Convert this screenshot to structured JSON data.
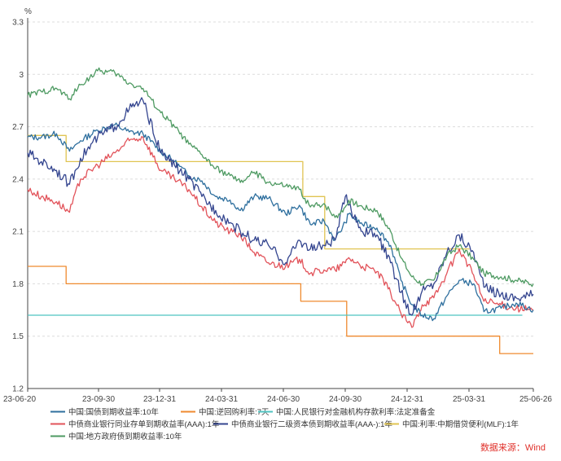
{
  "chart_data": {
    "type": "line",
    "unit": "%",
    "source": "数据来源：Wind",
    "ylim": [
      1.2,
      3.3
    ],
    "y_ticks": [
      "1.2",
      "1.5",
      "1.8",
      "2.1",
      "2.4",
      "2.7",
      "3",
      "3.3"
    ],
    "x_ticks": [
      "23-06-20",
      "23-09-30",
      "23-12-31",
      "24-03-31",
      "24-06-30",
      "24-09-30",
      "24-12-31",
      "25-03-31",
      "25-06-26"
    ],
    "xlim": [
      "2023-06-20",
      "2025-06-26"
    ],
    "grid": true,
    "legend_position": "bottom",
    "series": [
      {
        "name": "中国:国债到期收益率:10年",
        "color": "#2e6f9e",
        "points": [
          [
            "2023-06-20",
            2.64
          ],
          [
            "2023-07-10",
            2.64
          ],
          [
            "2023-08-01",
            2.66
          ],
          [
            "2023-08-20",
            2.56
          ],
          [
            "2023-09-05",
            2.62
          ],
          [
            "2023-09-30",
            2.68
          ],
          [
            "2023-10-25",
            2.71
          ],
          [
            "2023-11-15",
            2.67
          ],
          [
            "2023-12-05",
            2.66
          ],
          [
            "2023-12-31",
            2.56
          ],
          [
            "2024-01-20",
            2.5
          ],
          [
            "2024-02-10",
            2.42
          ],
          [
            "2024-02-29",
            2.39
          ],
          [
            "2024-03-20",
            2.3
          ],
          [
            "2024-04-10",
            2.28
          ],
          [
            "2024-04-25",
            2.22
          ],
          [
            "2024-05-15",
            2.3
          ],
          [
            "2024-06-05",
            2.29
          ],
          [
            "2024-06-30",
            2.2
          ],
          [
            "2024-07-20",
            2.25
          ],
          [
            "2024-08-05",
            2.14
          ],
          [
            "2024-08-25",
            2.16
          ],
          [
            "2024-09-10",
            2.05
          ],
          [
            "2024-09-25",
            2.15
          ],
          [
            "2024-09-30",
            2.2
          ],
          [
            "2024-10-20",
            2.14
          ],
          [
            "2024-11-10",
            2.12
          ],
          [
            "2024-11-30",
            2.02
          ],
          [
            "2024-12-15",
            1.82
          ],
          [
            "2024-12-31",
            1.68
          ],
          [
            "2025-01-15",
            1.62
          ],
          [
            "2025-02-01",
            1.6
          ],
          [
            "2025-02-20",
            1.73
          ],
          [
            "2025-03-10",
            1.82
          ],
          [
            "2025-03-31",
            1.8
          ],
          [
            "2025-04-15",
            1.64
          ],
          [
            "2025-05-10",
            1.66
          ],
          [
            "2025-06-01",
            1.69
          ],
          [
            "2025-06-26",
            1.65
          ]
        ]
      },
      {
        "name": "中国:逆回购利率:7天",
        "color": "#ef8a2f",
        "points": [
          [
            "2023-06-20",
            1.9
          ],
          [
            "2023-08-15",
            1.9
          ],
          [
            "2023-08-15",
            1.8
          ],
          [
            "2024-07-22",
            1.8
          ],
          [
            "2024-07-22",
            1.7
          ],
          [
            "2024-09-27",
            1.7
          ],
          [
            "2024-09-27",
            1.5
          ],
          [
            "2025-05-08",
            1.5
          ],
          [
            "2025-05-08",
            1.4
          ],
          [
            "2025-06-26",
            1.4
          ]
        ]
      },
      {
        "name": "中国:人民银行对金融机构存款利率:法定准备金",
        "color": "#4fc3c0",
        "points": [
          [
            "2023-06-20",
            1.62
          ],
          [
            "2025-06-10",
            1.62
          ]
        ]
      },
      {
        "name": "中债商业银行同业存单到期收益率(AAA):1年",
        "color": "#e2535a",
        "points": [
          [
            "2023-06-20",
            2.34
          ],
          [
            "2023-07-10",
            2.3
          ],
          [
            "2023-08-01",
            2.27
          ],
          [
            "2023-08-20",
            2.21
          ],
          [
            "2023-09-05",
            2.4
          ],
          [
            "2023-09-30",
            2.48
          ],
          [
            "2023-10-25",
            2.55
          ],
          [
            "2023-11-15",
            2.62
          ],
          [
            "2023-12-05",
            2.64
          ],
          [
            "2023-12-31",
            2.45
          ],
          [
            "2024-01-20",
            2.4
          ],
          [
            "2024-02-10",
            2.34
          ],
          [
            "2024-02-29",
            2.24
          ],
          [
            "2024-03-20",
            2.15
          ],
          [
            "2024-04-10",
            2.1
          ],
          [
            "2024-04-25",
            2.08
          ],
          [
            "2024-05-15",
            1.98
          ],
          [
            "2024-06-05",
            1.92
          ],
          [
            "2024-06-30",
            1.9
          ],
          [
            "2024-07-20",
            1.94
          ],
          [
            "2024-08-05",
            1.86
          ],
          [
            "2024-08-25",
            1.88
          ],
          [
            "2024-09-10",
            1.88
          ],
          [
            "2024-09-25",
            1.92
          ],
          [
            "2024-09-30",
            1.95
          ],
          [
            "2024-10-20",
            1.9
          ],
          [
            "2024-11-10",
            1.87
          ],
          [
            "2024-11-30",
            1.75
          ],
          [
            "2024-12-15",
            1.63
          ],
          [
            "2024-12-31",
            1.55
          ],
          [
            "2025-01-15",
            1.68
          ],
          [
            "2025-02-01",
            1.72
          ],
          [
            "2025-02-20",
            1.86
          ],
          [
            "2025-03-10",
            2.0
          ],
          [
            "2025-03-31",
            1.85
          ],
          [
            "2025-04-15",
            1.7
          ],
          [
            "2025-05-10",
            1.68
          ],
          [
            "2025-06-01",
            1.66
          ],
          [
            "2025-06-26",
            1.65
          ]
        ]
      },
      {
        "name": "中债商业银行二级资本债到期收益率(AAA-):1年",
        "color": "#34458f",
        "points": [
          [
            "2023-06-20",
            2.55
          ],
          [
            "2023-07-10",
            2.5
          ],
          [
            "2023-08-01",
            2.45
          ],
          [
            "2023-08-20",
            2.37
          ],
          [
            "2023-09-05",
            2.52
          ],
          [
            "2023-09-30",
            2.64
          ],
          [
            "2023-10-25",
            2.7
          ],
          [
            "2023-11-15",
            2.8
          ],
          [
            "2023-12-05",
            2.85
          ],
          [
            "2023-12-31",
            2.55
          ],
          [
            "2024-01-20",
            2.48
          ],
          [
            "2024-02-10",
            2.4
          ],
          [
            "2024-02-29",
            2.3
          ],
          [
            "2024-03-20",
            2.22
          ],
          [
            "2024-04-10",
            2.15
          ],
          [
            "2024-04-25",
            2.1
          ],
          [
            "2024-05-15",
            2.05
          ],
          [
            "2024-06-05",
            2.02
          ],
          [
            "2024-06-30",
            1.92
          ],
          [
            "2024-07-20",
            2.05
          ],
          [
            "2024-08-05",
            2.0
          ],
          [
            "2024-08-25",
            2.02
          ],
          [
            "2024-09-10",
            2.05
          ],
          [
            "2024-09-25",
            2.3
          ],
          [
            "2024-09-30",
            2.25
          ],
          [
            "2024-10-20",
            2.1
          ],
          [
            "2024-11-10",
            2.08
          ],
          [
            "2024-11-30",
            1.92
          ],
          [
            "2024-12-15",
            1.75
          ],
          [
            "2024-12-31",
            1.62
          ],
          [
            "2025-01-15",
            1.76
          ],
          [
            "2025-02-01",
            1.8
          ],
          [
            "2025-02-20",
            1.98
          ],
          [
            "2025-03-10",
            2.08
          ],
          [
            "2025-03-31",
            1.98
          ],
          [
            "2025-04-15",
            1.78
          ],
          [
            "2025-05-10",
            1.74
          ],
          [
            "2025-06-01",
            1.72
          ],
          [
            "2025-06-26",
            1.74
          ]
        ]
      },
      {
        "name": "中国:利率:中期借贷便利(MLF):1年",
        "color": "#e0c452",
        "points": [
          [
            "2023-06-20",
            2.65
          ],
          [
            "2023-08-15",
            2.65
          ],
          [
            "2023-08-15",
            2.5
          ],
          [
            "2024-07-25",
            2.5
          ],
          [
            "2024-07-25",
            2.3
          ],
          [
            "2024-08-26",
            2.3
          ],
          [
            "2024-08-26",
            2.0
          ],
          [
            "2025-03-25",
            2.0
          ]
        ]
      },
      {
        "name": "中国:地方政府债到期收益率:10年",
        "color": "#4e9a62",
        "points": [
          [
            "2023-06-20",
            2.88
          ],
          [
            "2023-07-10",
            2.9
          ],
          [
            "2023-08-01",
            2.92
          ],
          [
            "2023-08-20",
            2.86
          ],
          [
            "2023-09-05",
            2.94
          ],
          [
            "2023-09-30",
            3.02
          ],
          [
            "2023-10-25",
            3.01
          ],
          [
            "2023-11-15",
            2.95
          ],
          [
            "2023-12-05",
            2.92
          ],
          [
            "2023-12-31",
            2.78
          ],
          [
            "2024-01-20",
            2.7
          ],
          [
            "2024-02-10",
            2.6
          ],
          [
            "2024-02-29",
            2.54
          ],
          [
            "2024-03-20",
            2.46
          ],
          [
            "2024-04-10",
            2.42
          ],
          [
            "2024-04-25",
            2.38
          ],
          [
            "2024-05-15",
            2.44
          ],
          [
            "2024-06-05",
            2.38
          ],
          [
            "2024-06-30",
            2.36
          ],
          [
            "2024-07-20",
            2.34
          ],
          [
            "2024-08-05",
            2.24
          ],
          [
            "2024-08-25",
            2.26
          ],
          [
            "2024-09-10",
            2.18
          ],
          [
            "2024-09-25",
            2.24
          ],
          [
            "2024-09-30",
            2.28
          ],
          [
            "2024-10-20",
            2.24
          ],
          [
            "2024-11-10",
            2.22
          ],
          [
            "2024-11-30",
            2.1
          ],
          [
            "2024-12-15",
            1.95
          ],
          [
            "2024-12-31",
            1.84
          ],
          [
            "2025-01-15",
            1.8
          ],
          [
            "2025-02-01",
            1.82
          ],
          [
            "2025-02-20",
            1.96
          ],
          [
            "2025-03-10",
            2.02
          ],
          [
            "2025-03-31",
            1.94
          ],
          [
            "2025-04-15",
            1.86
          ],
          [
            "2025-05-10",
            1.84
          ],
          [
            "2025-06-01",
            1.82
          ],
          [
            "2025-06-26",
            1.8
          ]
        ]
      }
    ]
  }
}
